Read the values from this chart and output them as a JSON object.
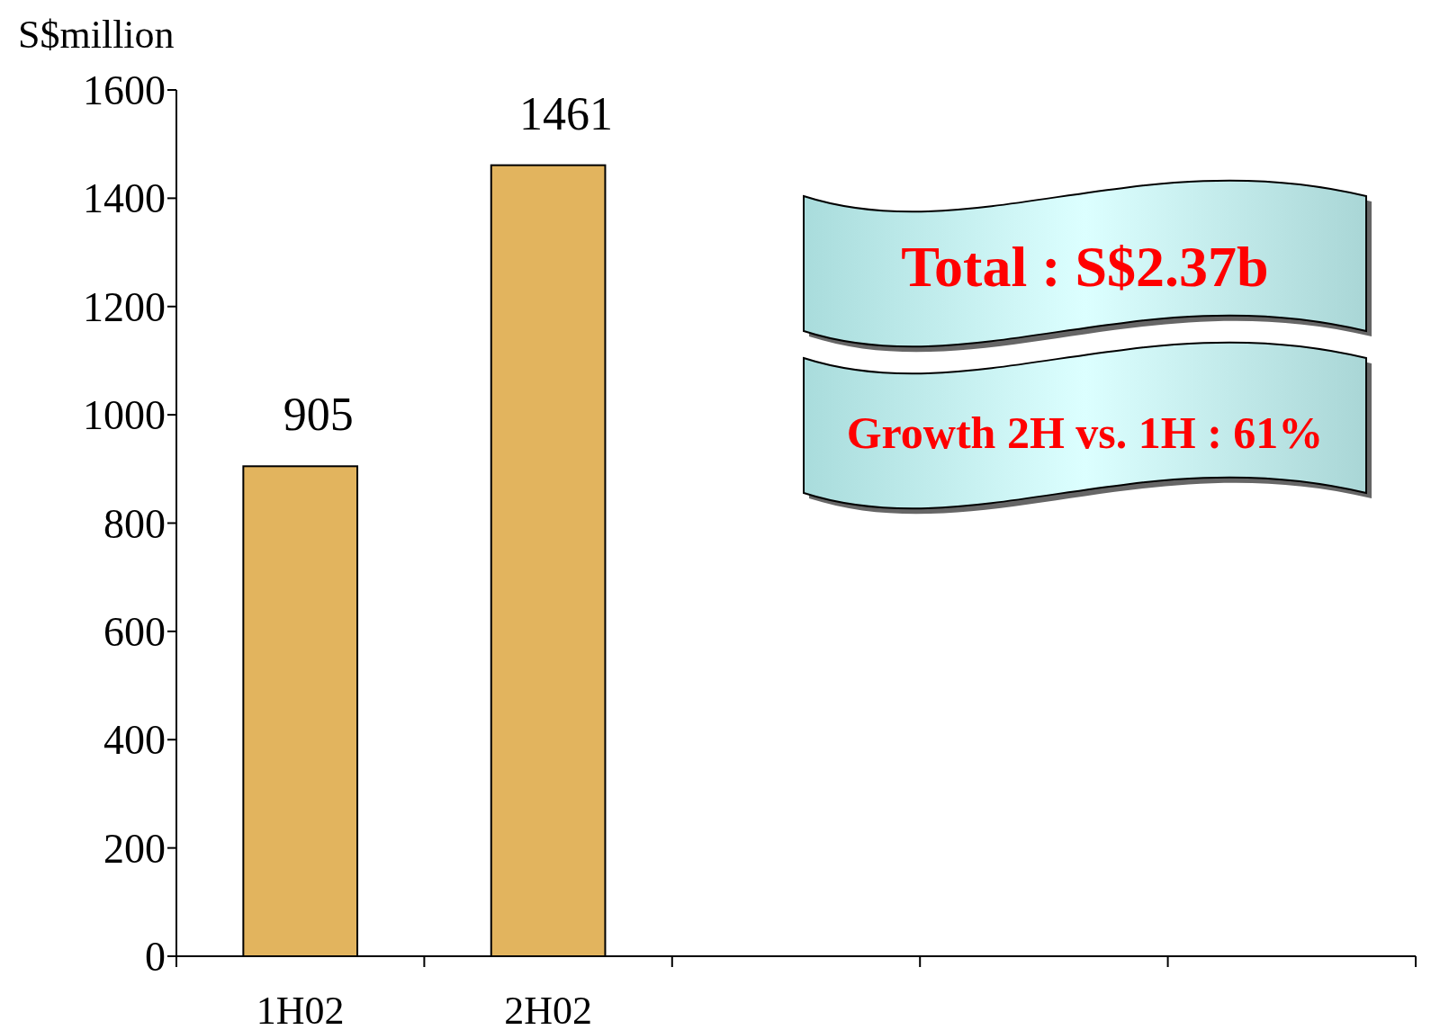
{
  "chart_data": {
    "type": "bar",
    "ylabel": "S$million",
    "categories": [
      "1H02",
      "2H02",
      null,
      null,
      null
    ],
    "values": [
      905,
      1461,
      null,
      null,
      null
    ],
    "color": "#e2b45e",
    "ylim": [
      0,
      1600
    ],
    "yticks": [
      0,
      200,
      400,
      600,
      800,
      1000,
      1200,
      1400,
      1600
    ],
    "data_labels": true,
    "annotations": [
      "Total : S$2.37b",
      "Growth 2H vs. 1H : 61%"
    ]
  }
}
